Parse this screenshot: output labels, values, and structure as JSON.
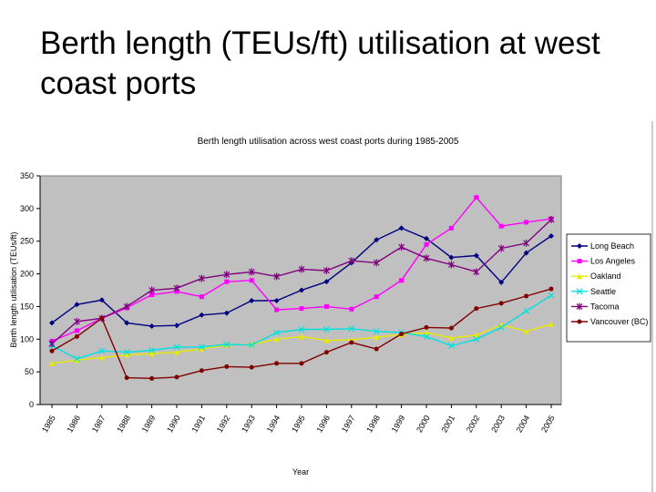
{
  "slide": {
    "title": "Berth length (TEUs/ft) utilisation at west coast ports"
  },
  "chart_data": {
    "type": "line",
    "title": "Berth length utilisation across west coast ports during 1985-2005",
    "xlabel": "Year",
    "ylabel": "Berth length utilisation (TEUs/ft)",
    "ylim": [
      0,
      350
    ],
    "yticks": [
      0,
      50,
      100,
      150,
      200,
      250,
      300,
      350
    ],
    "categories": [
      "1985",
      "1986",
      "1987",
      "1988",
      "1989",
      "1990",
      "1991",
      "1992",
      "1993",
      "1994",
      "1995",
      "1996",
      "1997",
      "1998",
      "1999",
      "2000",
      "2001",
      "2002",
      "2003",
      "2004",
      "2005"
    ],
    "legend_position": "right",
    "grid": false,
    "background": "#c0c0c0",
    "series": [
      {
        "name": "Long Beach",
        "color": "#000080",
        "marker": "diamond",
        "values": [
          125,
          153,
          160,
          125,
          120,
          121,
          137,
          140,
          159,
          159,
          175,
          188,
          217,
          252,
          270,
          254,
          225,
          228,
          187,
          232,
          258
        ]
      },
      {
        "name": "Los Angeles",
        "color": "#ff00ff",
        "marker": "square",
        "values": [
          97,
          113,
          132,
          148,
          168,
          173,
          165,
          188,
          190,
          145,
          147,
          150,
          146,
          165,
          190,
          245,
          270,
          317,
          273,
          279,
          284
        ]
      },
      {
        "name": "Oakland",
        "color": "#e8e800",
        "marker": "triangle",
        "values": [
          63,
          68,
          72,
          76,
          78,
          80,
          85,
          91,
          92,
          100,
          104,
          98,
          99,
          103,
          107,
          110,
          102,
          106,
          122,
          112,
          123
        ]
      },
      {
        "name": "Seattle",
        "color": "#00e0e0",
        "marker": "x",
        "values": [
          90,
          70,
          82,
          80,
          83,
          88,
          88,
          92,
          91,
          110,
          115,
          115,
          116,
          112,
          110,
          104,
          90,
          100,
          118,
          143,
          167
        ]
      },
      {
        "name": "Tacoma",
        "color": "#800080",
        "marker": "star",
        "values": [
          93,
          127,
          132,
          150,
          175,
          178,
          193,
          199,
          203,
          196,
          207,
          205,
          220,
          217,
          241,
          224,
          214,
          203,
          239,
          247,
          283
        ]
      },
      {
        "name": "Vancouver (BC)",
        "color": "#800000",
        "marker": "circle",
        "values": [
          82,
          104,
          132,
          41,
          40,
          42,
          52,
          58,
          57,
          63,
          63,
          80,
          95,
          85,
          108,
          118,
          117,
          147,
          155,
          166,
          177
        ]
      }
    ]
  }
}
